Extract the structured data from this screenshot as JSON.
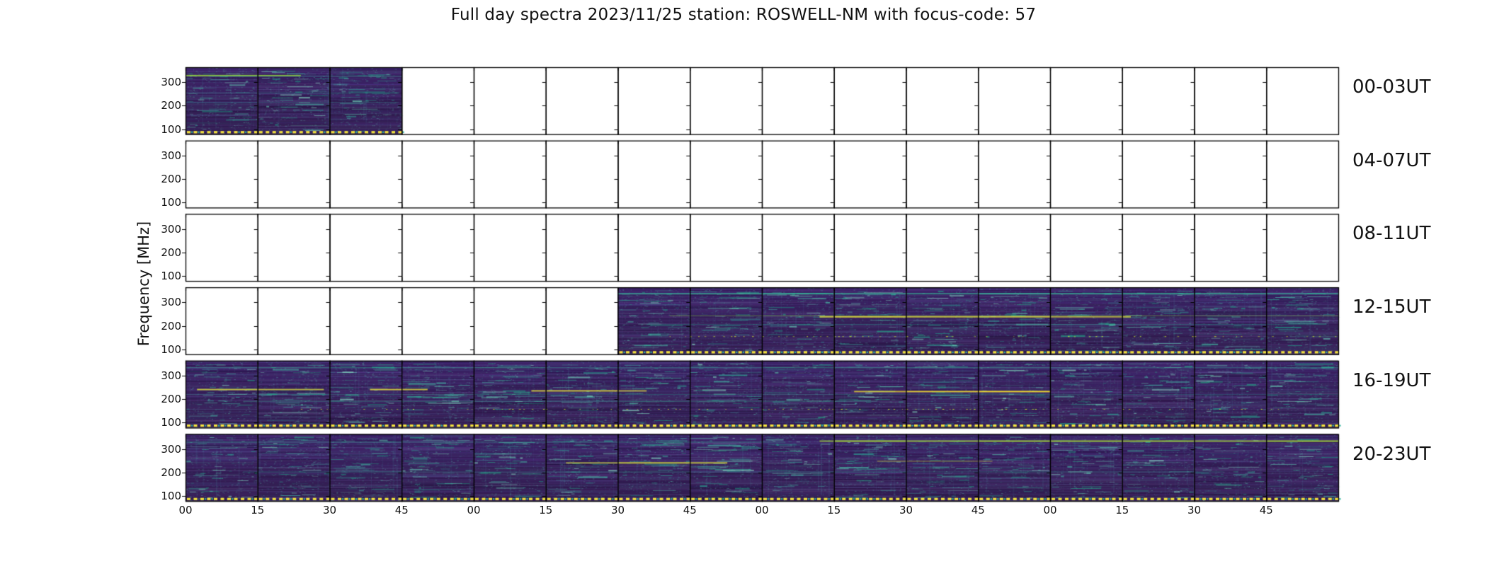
{
  "title": "Full day spectra 2023/11/25 station: ROSWELL-NM with focus-code: 57",
  "ylabel": "Frequency [MHz]",
  "y_tick_labels": [
    "300",
    "200",
    "100"
  ],
  "x_tick_labels": [
    "00",
    "15",
    "30",
    "45",
    "00",
    "15",
    "30",
    "45",
    "00",
    "15",
    "30",
    "45",
    "00",
    "15",
    "30",
    "45"
  ],
  "panels_per_row": 16,
  "minutes_per_panel": 15,
  "rows": [
    {
      "label": "00-03UT",
      "filled_start": 0,
      "filled_count": 3,
      "features": [
        {
          "x0": 0.0,
          "x1": 0.1,
          "y": 0.115,
          "color": "#9adb38",
          "alpha": 0.95,
          "lw": 2
        },
        {
          "x0": 0.02,
          "x1": 0.19,
          "y": 0.13,
          "color": "#3bbf9e",
          "alpha": 0.55,
          "lw": 1
        },
        {
          "x0": 0.0,
          "x1": 0.185,
          "y": 0.38,
          "color": "#2fae96",
          "alpha": 0.45,
          "lw": 1
        },
        {
          "x0": 0.0,
          "x1": 0.185,
          "y": 0.52,
          "color": "#2fae96",
          "alpha": 0.35,
          "lw": 1
        }
      ]
    },
    {
      "label": "04-07UT",
      "filled_start": 0,
      "filled_count": 0,
      "features": []
    },
    {
      "label": "08-11UT",
      "filled_start": 0,
      "filled_count": 0,
      "features": []
    },
    {
      "label": "12-15UT",
      "filled_start": 6,
      "filled_count": 10,
      "features": [
        {
          "x0": 0.375,
          "x1": 1.0,
          "y": 0.085,
          "color": "#3bbf9e",
          "alpha": 0.8,
          "lw": 2
        },
        {
          "x0": 0.42,
          "x1": 1.0,
          "y": 0.42,
          "color": "#8fd643",
          "alpha": 0.55,
          "lw": 1
        },
        {
          "x0": 0.55,
          "x1": 0.82,
          "y": 0.43,
          "color": "#e9e53b",
          "alpha": 0.85,
          "lw": 2
        },
        {
          "x0": 0.4,
          "x1": 0.99,
          "y": 0.55,
          "color": "#2fae96",
          "alpha": 0.45,
          "lw": 1
        },
        {
          "x0": 0.42,
          "x1": 1.0,
          "y": 0.73,
          "dots": true,
          "color": "#c8e22f"
        }
      ]
    },
    {
      "label": "16-19UT",
      "filled_start": 0,
      "filled_count": 16,
      "features": [
        {
          "x0": 0.0,
          "x1": 1.0,
          "y": 0.1,
          "color": "#38b89c",
          "alpha": 0.6,
          "lw": 1
        },
        {
          "x0": 0.01,
          "x1": 0.12,
          "y": 0.42,
          "color": "#d9e23c",
          "alpha": 0.8,
          "lw": 2
        },
        {
          "x0": 0.16,
          "x1": 0.21,
          "y": 0.42,
          "color": "#e9e53b",
          "alpha": 0.85,
          "lw": 2
        },
        {
          "x0": 0.3,
          "x1": 0.4,
          "y": 0.44,
          "color": "#e9e53b",
          "alpha": 0.85,
          "lw": 2
        },
        {
          "x0": 0.58,
          "x1": 0.75,
          "y": 0.45,
          "color": "#fce82a",
          "alpha": 0.9,
          "lw": 2
        },
        {
          "x0": 0.0,
          "x1": 1.0,
          "y": 0.5,
          "color": "#2fae96",
          "alpha": 0.35,
          "lw": 1
        },
        {
          "x0": 0.05,
          "x1": 0.6,
          "y": 0.6,
          "color": "#46c3a5",
          "alpha": 0.5,
          "lw": 1
        },
        {
          "x0": 0.1,
          "x1": 0.95,
          "y": 0.72,
          "dots": true,
          "color": "#c8e22f"
        }
      ]
    },
    {
      "label": "20-23UT",
      "filled_start": 0,
      "filled_count": 16,
      "features": [
        {
          "x0": 0.55,
          "x1": 1.0,
          "y": 0.095,
          "color": "#a6dc35",
          "alpha": 0.9,
          "lw": 2
        },
        {
          "x0": 0.0,
          "x1": 0.52,
          "y": 0.115,
          "color": "#38b89c",
          "alpha": 0.6,
          "lw": 1
        },
        {
          "x0": 0.33,
          "x1": 0.47,
          "y": 0.42,
          "color": "#dce23a",
          "alpha": 0.8,
          "lw": 2
        },
        {
          "x0": 0.6,
          "x1": 0.7,
          "y": 0.4,
          "color": "#e9e53b",
          "alpha": 0.7,
          "lw": 1
        },
        {
          "x0": 0.05,
          "x1": 0.9,
          "y": 0.56,
          "color": "#2fae96",
          "alpha": 0.4,
          "lw": 1
        }
      ]
    }
  ],
  "colors": {
    "background_top": "#3c2268",
    "background_mid": "#372059",
    "background_bottom": "#331d52",
    "panel_border": "#000000",
    "streak_palette": [
      "#1fa187",
      "#23a884",
      "#2cb59a",
      "#45c0a8",
      "#63cdb4",
      "#86dbc3"
    ],
    "bright_yellow": "#f4e33d",
    "dot_teal": "#2fb5a0",
    "text": "#111111"
  },
  "chart_data": {
    "type": "heatmap",
    "title": "Full day spectra 2023/11/25 station: ROSWELL-NM with focus-code: 57",
    "ylabel": "Frequency [MHz]",
    "y_tick_labels": [
      "300",
      "200",
      "100"
    ],
    "x_tick_labels": [
      "00",
      "15",
      "30",
      "45",
      "00",
      "15",
      "30",
      "45",
      "00",
      "15",
      "30",
      "45",
      "00",
      "15",
      "30",
      "45"
    ],
    "x_units": "minutes within each hour",
    "colormap": "viridis",
    "grid": "6 rows x 16 panels, each panel = 15 minutes",
    "rows": [
      {
        "label": "00-03UT",
        "panels_with_data": [
          0,
          1,
          2
        ]
      },
      {
        "label": "04-07UT",
        "panels_with_data": []
      },
      {
        "label": "08-11UT",
        "panels_with_data": []
      },
      {
        "label": "12-15UT",
        "panels_with_data": [
          6,
          7,
          8,
          9,
          10,
          11,
          12,
          13,
          14,
          15
        ]
      },
      {
        "label": "16-19UT",
        "panels_with_data": [
          0,
          1,
          2,
          3,
          4,
          5,
          6,
          7,
          8,
          9,
          10,
          11,
          12,
          13,
          14,
          15
        ]
      },
      {
        "label": "20-23UT",
        "panels_with_data": [
          0,
          1,
          2,
          3,
          4,
          5,
          6,
          7,
          8,
          9,
          10,
          11,
          12,
          13,
          14,
          15
        ]
      }
    ]
  }
}
